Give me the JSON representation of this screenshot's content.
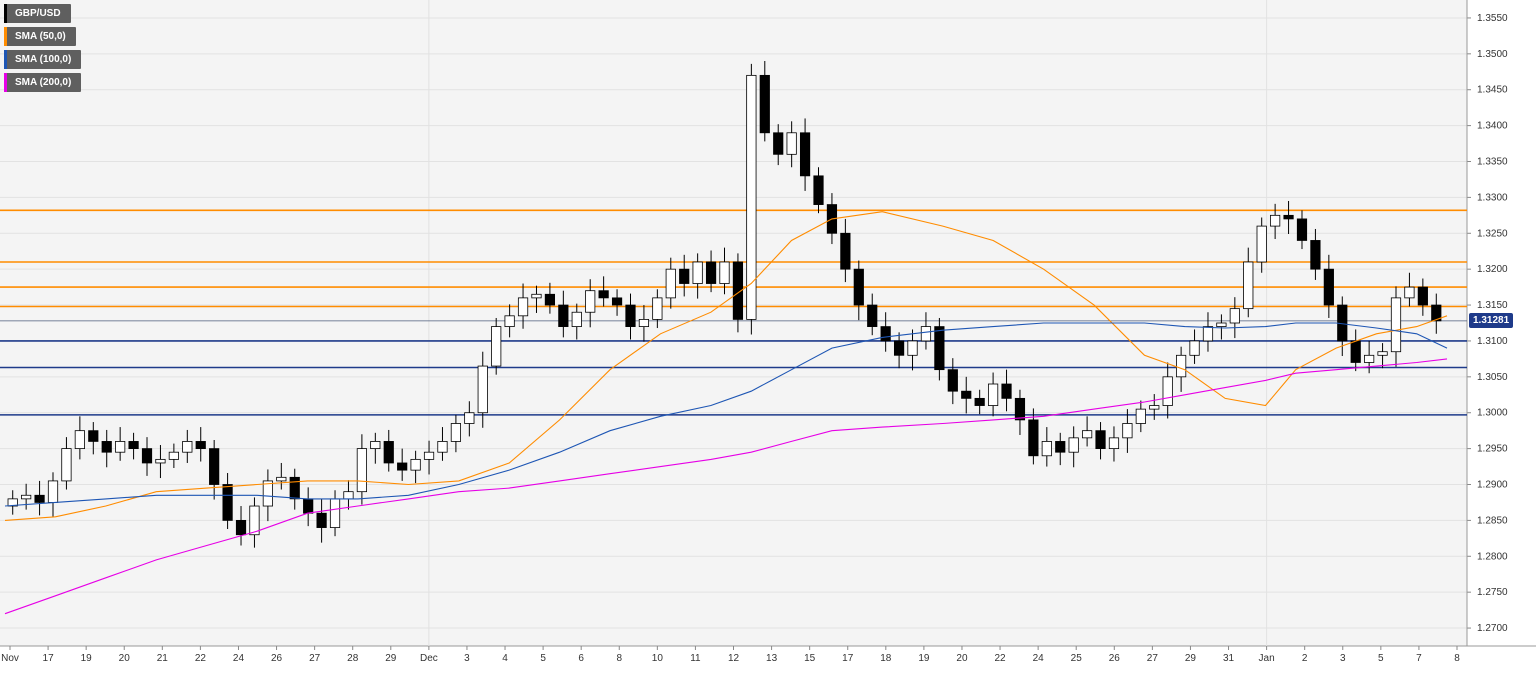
{
  "legend": [
    {
      "label": "GBP/USD",
      "color": "#000000"
    },
    {
      "label": "SMA (50,0)",
      "color": "#ff8c00"
    },
    {
      "label": "SMA (100,0)",
      "color": "#1e56b4"
    },
    {
      "label": "SMA (200,0)",
      "color": "#e600e6"
    }
  ],
  "current_price": "1.31281",
  "colors": {
    "background": "#f4f4f4",
    "grid": "#e2e2e2",
    "resistance": "#ff8c00",
    "support": "#1e3a8a",
    "sma50": "#ff8c00",
    "sma100": "#1e56b4",
    "sma200": "#e600e6",
    "candle_up": "#ffffff",
    "candle_down": "#000000"
  },
  "chart_data": {
    "type": "candlestick",
    "title": "",
    "xlabel": "",
    "ylabel": "",
    "ylim": [
      1.2675,
      1.3575
    ],
    "yticks": [
      "1.2700",
      "1.2750",
      "1.2800",
      "1.2850",
      "1.2900",
      "1.2950",
      "1.3000",
      "1.3050",
      "1.3100",
      "1.3150",
      "1.3200",
      "1.3250",
      "1.3300",
      "1.3350",
      "1.3400",
      "1.3450",
      "1.3500",
      "1.3550"
    ],
    "xticks": [
      "Nov",
      "17",
      "19",
      "20",
      "21",
      "22",
      "24",
      "26",
      "27",
      "28",
      "29",
      "Dec",
      "3",
      "4",
      "5",
      "6",
      "8",
      "10",
      "11",
      "12",
      "13",
      "15",
      "17",
      "18",
      "19",
      "20",
      "22",
      "24",
      "25",
      "26",
      "27",
      "29",
      "31",
      "Jan",
      "2",
      "3",
      "5",
      "7",
      "8"
    ],
    "resistance_levels": [
      1.3282,
      1.321,
      1.3175,
      1.3148
    ],
    "support_levels": [
      1.31,
      1.3063,
      1.2997
    ],
    "last_price_line": 1.3128,
    "series_close": [
      1.288,
      1.2885,
      1.2875,
      1.2905,
      1.295,
      1.2975,
      1.296,
      1.2945,
      1.296,
      1.295,
      1.293,
      1.2935,
      1.2945,
      1.296,
      1.295,
      1.29,
      1.285,
      1.283,
      1.287,
      1.2905,
      1.291,
      1.288,
      1.286,
      1.284,
      1.288,
      1.289,
      1.295,
      1.296,
      1.293,
      1.292,
      1.2935,
      1.2945,
      1.296,
      1.2985,
      1.3,
      1.3065,
      1.312,
      1.3135,
      1.316,
      1.3165,
      1.315,
      1.312,
      1.314,
      1.317,
      1.316,
      1.315,
      1.312,
      1.313,
      1.316,
      1.32,
      1.318,
      1.321,
      1.318,
      1.321,
      1.313,
      1.347,
      1.339,
      1.336,
      1.339,
      1.333,
      1.329,
      1.325,
      1.32,
      1.315,
      1.312,
      1.31,
      1.308,
      1.31,
      1.312,
      1.306,
      1.303,
      1.302,
      1.301,
      1.304,
      1.302,
      1.299,
      1.294,
      1.296,
      1.2945,
      1.2965,
      1.2975,
      1.295,
      1.2965,
      1.2985,
      1.3005,
      1.301,
      1.305,
      1.308,
      1.31,
      1.312,
      1.3125,
      1.3145,
      1.321,
      1.326,
      1.3275,
      1.327,
      1.324,
      1.32,
      1.315,
      1.31,
      1.307,
      1.308,
      1.3085,
      1.316,
      1.3175,
      1.315,
      1.3128
    ],
    "sma_50": [
      [
        0,
        1.285
      ],
      [
        50,
        1.2855
      ],
      [
        100,
        1.287
      ],
      [
        150,
        1.289
      ],
      [
        200,
        1.2895
      ],
      [
        250,
        1.29
      ],
      [
        300,
        1.2905
      ],
      [
        350,
        1.2905
      ],
      [
        400,
        1.29
      ],
      [
        450,
        1.2905
      ],
      [
        500,
        1.293
      ],
      [
        550,
        1.299
      ],
      [
        600,
        1.306
      ],
      [
        650,
        1.311
      ],
      [
        700,
        1.314
      ],
      [
        740,
        1.318
      ],
      [
        780,
        1.324
      ],
      [
        820,
        1.327
      ],
      [
        870,
        1.328
      ],
      [
        930,
        1.326
      ],
      [
        980,
        1.324
      ],
      [
        1030,
        1.32
      ],
      [
        1080,
        1.315
      ],
      [
        1130,
        1.308
      ],
      [
        1170,
        1.306
      ],
      [
        1210,
        1.302
      ],
      [
        1250,
        1.301
      ],
      [
        1280,
        1.306
      ],
      [
        1320,
        1.309
      ],
      [
        1360,
        1.311
      ],
      [
        1400,
        1.312
      ],
      [
        1430,
        1.3135
      ]
    ],
    "sma_100": [
      [
        0,
        1.287
      ],
      [
        50,
        1.2875
      ],
      [
        100,
        1.288
      ],
      [
        150,
        1.2885
      ],
      [
        200,
        1.2885
      ],
      [
        250,
        1.2885
      ],
      [
        300,
        1.288
      ],
      [
        350,
        1.288
      ],
      [
        400,
        1.2885
      ],
      [
        450,
        1.29
      ],
      [
        500,
        1.292
      ],
      [
        550,
        1.2945
      ],
      [
        600,
        1.2975
      ],
      [
        650,
        1.2995
      ],
      [
        700,
        1.301
      ],
      [
        740,
        1.303
      ],
      [
        780,
        1.306
      ],
      [
        820,
        1.309
      ],
      [
        870,
        1.3105
      ],
      [
        930,
        1.3115
      ],
      [
        980,
        1.312
      ],
      [
        1030,
        1.3125
      ],
      [
        1080,
        1.3125
      ],
      [
        1130,
        1.3125
      ],
      [
        1170,
        1.312
      ],
      [
        1210,
        1.3118
      ],
      [
        1250,
        1.312
      ],
      [
        1280,
        1.3125
      ],
      [
        1320,
        1.3125
      ],
      [
        1360,
        1.3118
      ],
      [
        1400,
        1.311
      ],
      [
        1430,
        1.309
      ]
    ],
    "sma_200": [
      [
        0,
        1.272
      ],
      [
        50,
        1.2745
      ],
      [
        100,
        1.277
      ],
      [
        150,
        1.2795
      ],
      [
        200,
        1.2815
      ],
      [
        250,
        1.2835
      ],
      [
        300,
        1.286
      ],
      [
        350,
        1.287
      ],
      [
        400,
        1.288
      ],
      [
        450,
        1.289
      ],
      [
        500,
        1.2895
      ],
      [
        550,
        1.2905
      ],
      [
        600,
        1.2915
      ],
      [
        650,
        1.2925
      ],
      [
        700,
        1.2935
      ],
      [
        740,
        1.2945
      ],
      [
        780,
        1.296
      ],
      [
        820,
        1.2975
      ],
      [
        870,
        1.298
      ],
      [
        930,
        1.2985
      ],
      [
        980,
        1.299
      ],
      [
        1030,
        1.2995
      ],
      [
        1080,
        1.3005
      ],
      [
        1130,
        1.3015
      ],
      [
        1170,
        1.3025
      ],
      [
        1210,
        1.3035
      ],
      [
        1250,
        1.3045
      ],
      [
        1280,
        1.3055
      ],
      [
        1320,
        1.306
      ],
      [
        1360,
        1.3065
      ],
      [
        1400,
        1.307
      ],
      [
        1430,
        1.3075
      ]
    ]
  }
}
